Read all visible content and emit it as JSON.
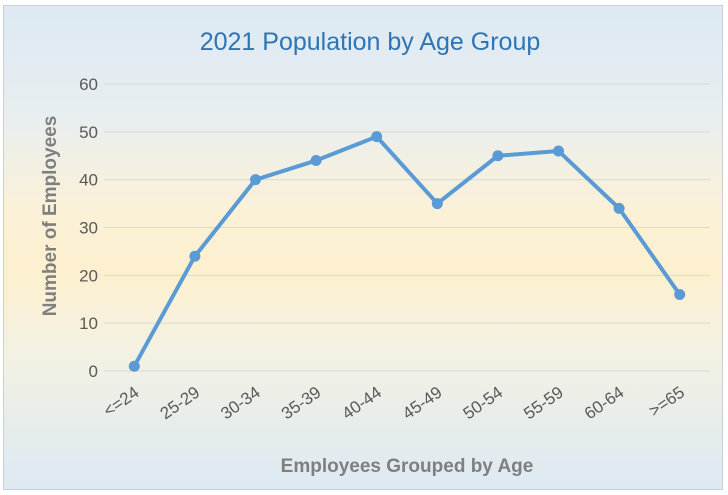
{
  "chart_data": {
    "type": "line",
    "title": "2021 Population by Age Group",
    "xlabel": "Employees Grouped by Age",
    "ylabel": "Number of Employees",
    "categories": [
      "<=24",
      "25-29",
      "30-34",
      "35-39",
      "40-44",
      "45-49",
      "50-54",
      "55-59",
      "60-64",
      ">=65"
    ],
    "series": [
      {
        "values": [
          1,
          24,
          40,
          44,
          49,
          35,
          45,
          46,
          34,
          16
        ]
      }
    ],
    "ylim": [
      0,
      60
    ],
    "yticks": [
      0,
      10,
      20,
      30,
      40,
      50,
      60
    ],
    "grid": true,
    "legend": "none",
    "colors": {
      "line": "#5b9bd5",
      "grid": "#d9d9d9",
      "title": "#2e75b6"
    }
  }
}
